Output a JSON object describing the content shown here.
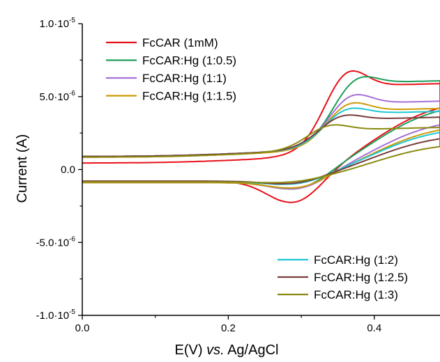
{
  "chart_data": {
    "type": "line",
    "xlabel_parts": [
      "E(V) ",
      "vs.",
      " Ag/AgCl"
    ],
    "ylabel": "Current (A)",
    "xlim": [
      0.0,
      0.49
    ],
    "ylim": [
      -1e-05,
      1e-05
    ],
    "x_ticks": [
      {
        "value": 0.0,
        "label": "0.0"
      },
      {
        "value": 0.2,
        "label": "0.2"
      },
      {
        "value": 0.4,
        "label": "0.4"
      }
    ],
    "y_ticks": [
      {
        "value": 1e-05,
        "mant": "1.0·10",
        "exp": "-5"
      },
      {
        "value": 5e-06,
        "mant": "5.0·10",
        "exp": "-6"
      },
      {
        "value": 0.0,
        "mant": "0.0",
        "exp": ""
      },
      {
        "value": -5e-06,
        "mant": "-5.0·10",
        "exp": "-6"
      },
      {
        "value": -1e-05,
        "mant": "-1.0·10",
        "exp": "-5"
      }
    ],
    "legends": [
      {
        "items": [
          "FcCAR (1mM)",
          "FcCAR:Hg (1:0.5)",
          "FcCAR:Hg (1:1)",
          "FcCAR:Hg (1:1.5)"
        ]
      },
      {
        "items": [
          "FcCAR:Hg (1:2)",
          "FcCAR:Hg (1:2.5)",
          "FcCAR:Hg (1:3)"
        ]
      }
    ],
    "series": [
      {
        "name": "FcCAR (1mM)",
        "color": "#e8101a",
        "base": 4.5e-07,
        "pa": 6.8e-06,
        "epa": 0.362,
        "ya_end": 5.3e-06,
        "cbase": -8e-07,
        "pc": -2.7e-06,
        "epc": 0.292,
        "yc_end": 4.9e-06,
        "slope": "ramp"
      },
      {
        "name": "FcCAR:Hg (1:0.5)",
        "color": "#1f9e5a",
        "base": 9e-07,
        "pa": 6.3e-06,
        "epa": 0.375,
        "ya_end": 5.5e-06,
        "cbase": -8.5e-07,
        "pc": -1.8e-06,
        "epc": 0.298,
        "yc_end": 4.7e-06,
        "slope": "ramp"
      },
      {
        "name": "FcCAR:Hg (1:1)",
        "color": "#a66fd8",
        "base": 9e-07,
        "pa": 5e-06,
        "epa": 0.368,
        "ya_end": 4.1e-06,
        "cbase": -9e-07,
        "pc": -1.7e-06,
        "epc": 0.298,
        "yc_end": 3.6e-06,
        "slope": "ramp"
      },
      {
        "name": "FcCAR:Hg (1:1.5)",
        "color": "#cc9a06",
        "base": 8.5e-07,
        "pa": 4.4e-06,
        "epa": 0.365,
        "ya_end": 3.6e-06,
        "cbase": -9e-07,
        "pc": -1.6e-06,
        "epc": 0.297,
        "yc_end": 3.2e-06,
        "slope": "ramp"
      },
      {
        "name": "FcCAR:Hg (1:2)",
        "color": "#1cc7d2",
        "base": 9e-07,
        "pa": 4e-06,
        "epa": 0.362,
        "ya_end": 3.4e-06,
        "cbase": -8.5e-07,
        "pc": -1.3e-06,
        "epc": 0.296,
        "yc_end": 3e-06,
        "slope": "ramp"
      },
      {
        "name": "FcCAR:Hg (1:2.5)",
        "color": "#7a3b3b",
        "base": 9e-07,
        "pa": 3.5e-06,
        "epa": 0.355,
        "ya_end": 3e-06,
        "cbase": -8e-07,
        "pc": -1.2e-06,
        "epc": 0.292,
        "yc_end": 2.5e-06,
        "slope": "ramp"
      },
      {
        "name": "FcCAR:Hg (1:3)",
        "color": "#8a8a10",
        "base": 8.5e-07,
        "pa": 2.8e-06,
        "epa": 0.338,
        "ya_end": 2.3e-06,
        "cbase": -8.5e-07,
        "pc": -1.05e-06,
        "epc": 0.29,
        "yc_end": 1.9e-06,
        "slope": "ramp"
      }
    ]
  }
}
